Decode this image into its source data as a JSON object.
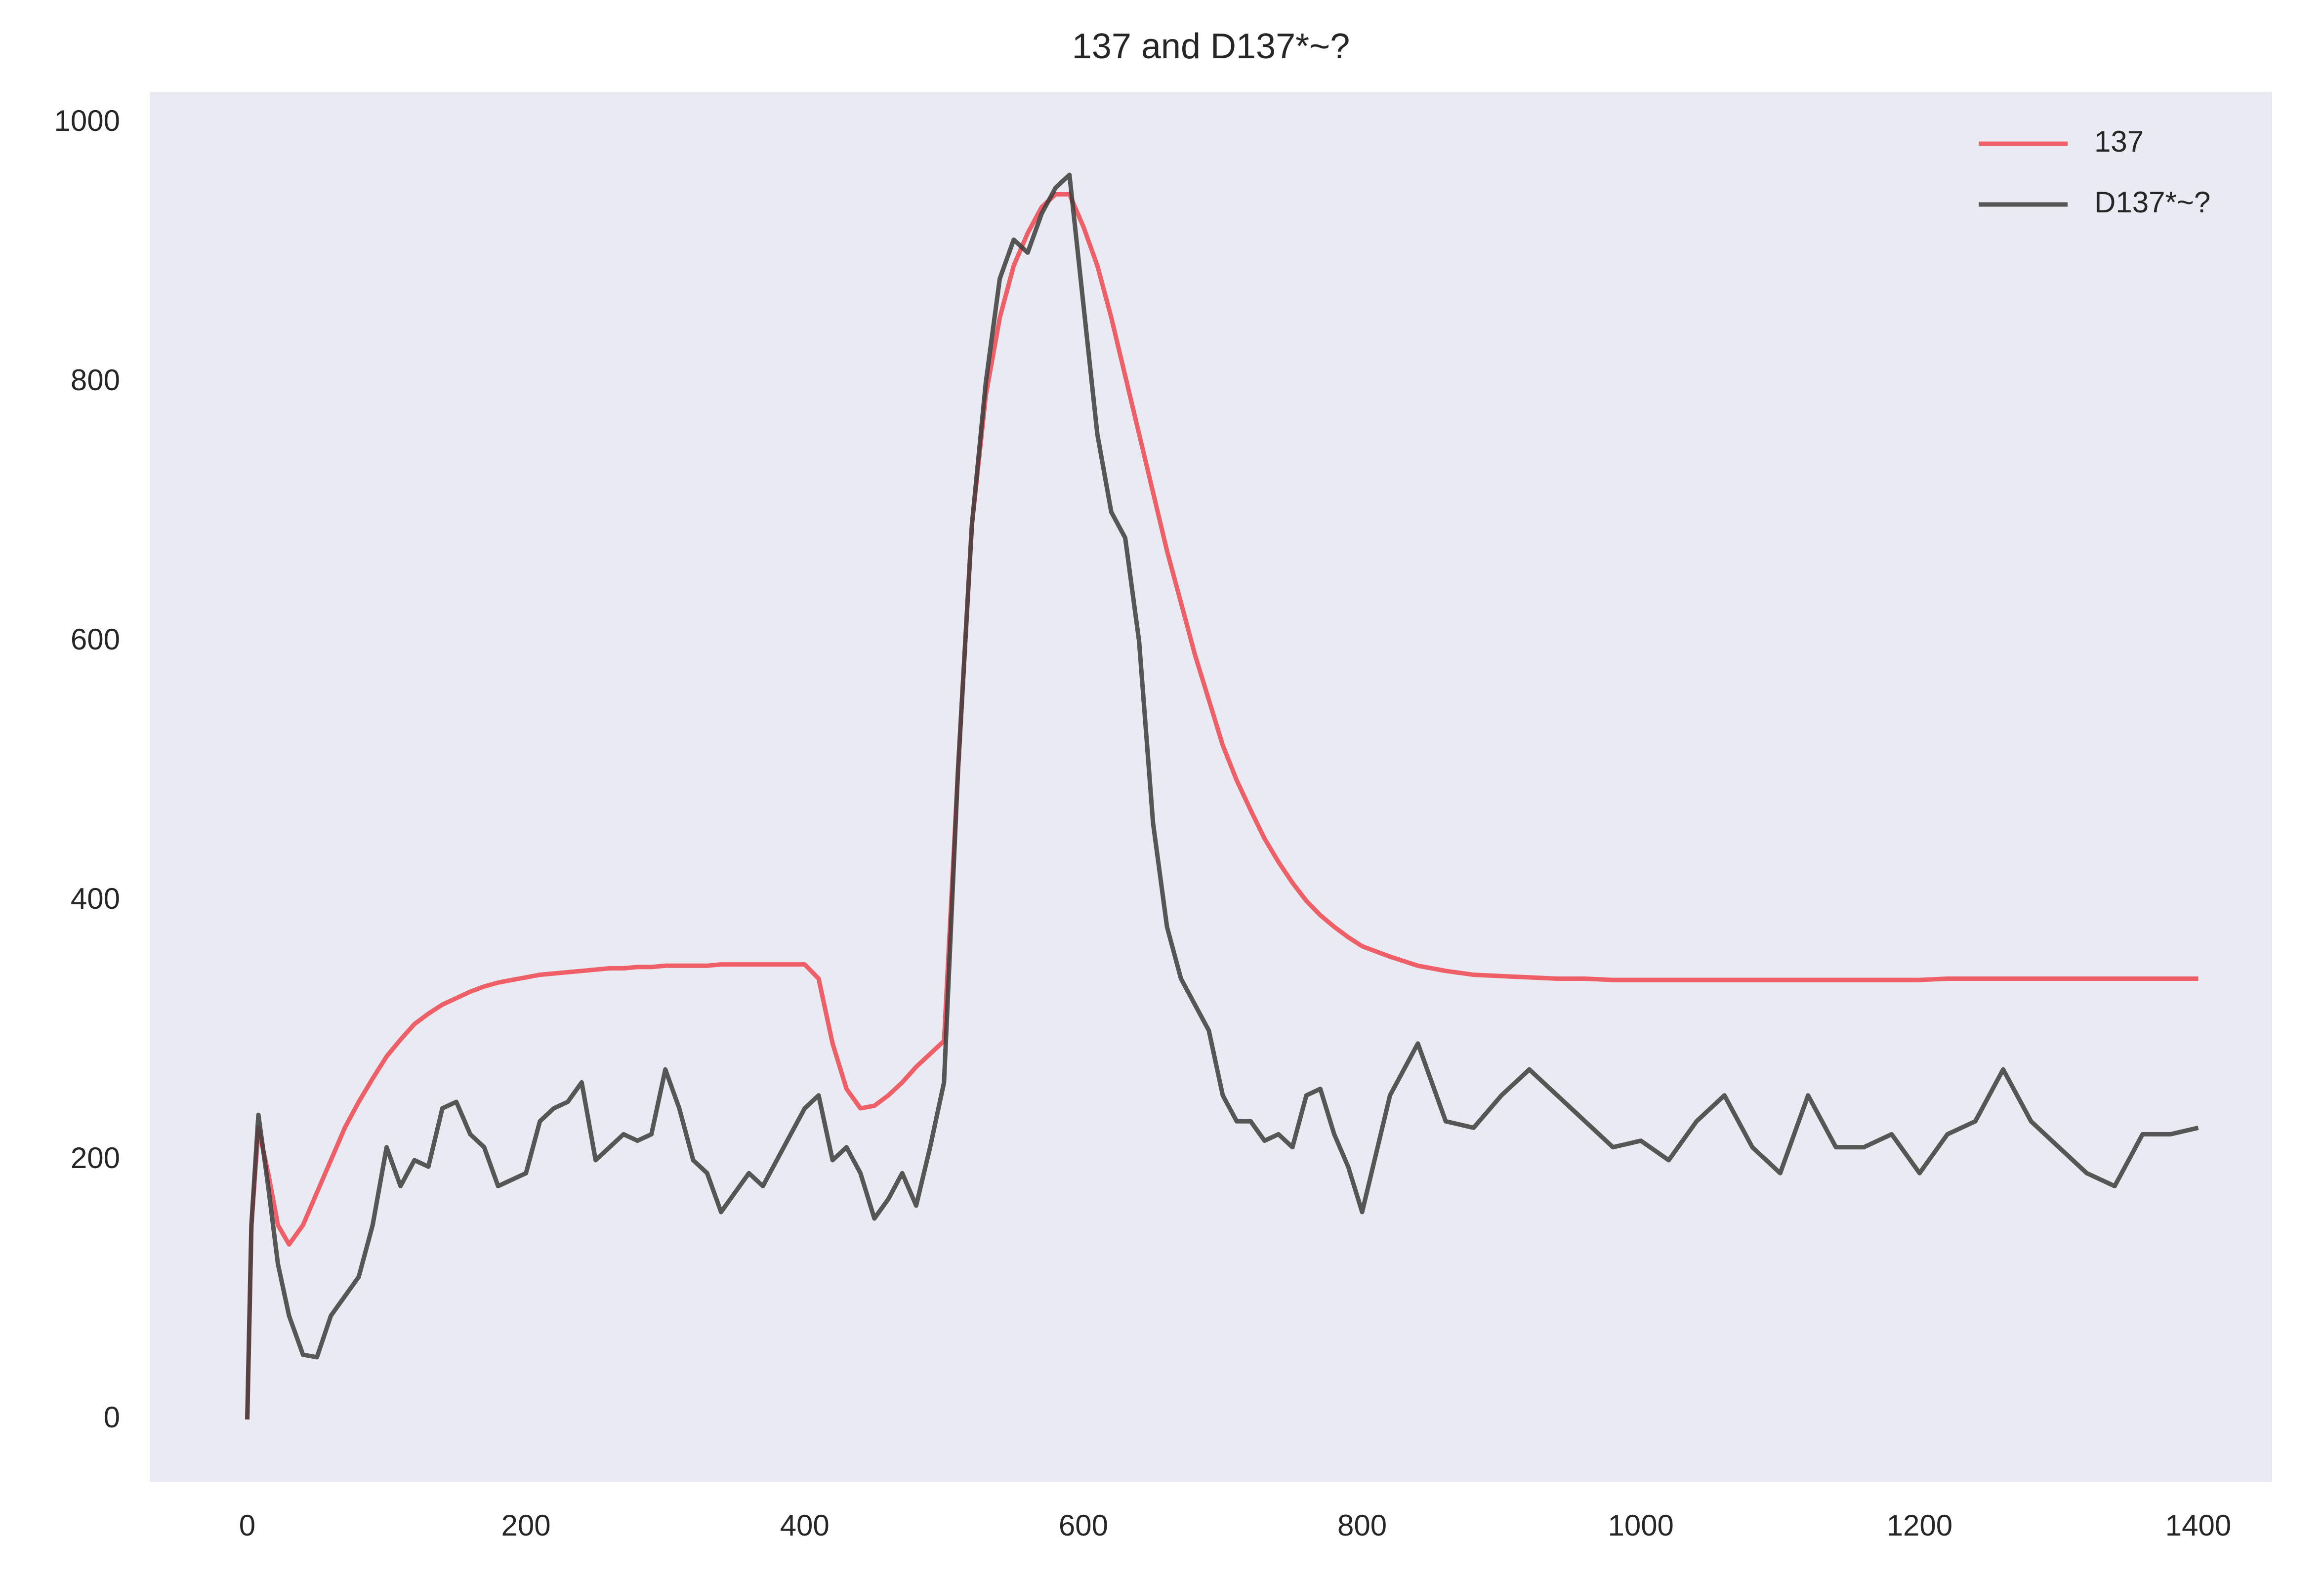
{
  "chart_data": {
    "type": "line",
    "title": "137 and D137*~?",
    "x": [
      0,
      3,
      8,
      15,
      22,
      30,
      40,
      50,
      60,
      70,
      80,
      90,
      100,
      110,
      120,
      130,
      140,
      150,
      160,
      170,
      180,
      190,
      200,
      210,
      220,
      230,
      240,
      250,
      260,
      270,
      280,
      290,
      300,
      310,
      320,
      330,
      340,
      350,
      360,
      370,
      380,
      390,
      400,
      410,
      420,
      430,
      440,
      450,
      460,
      470,
      480,
      490,
      500,
      510,
      520,
      530,
      540,
      550,
      560,
      570,
      580,
      590,
      600,
      610,
      620,
      630,
      640,
      650,
      660,
      670,
      680,
      690,
      700,
      710,
      720,
      730,
      740,
      750,
      760,
      770,
      780,
      790,
      800,
      820,
      840,
      860,
      880,
      900,
      920,
      940,
      960,
      980,
      1000,
      1020,
      1040,
      1060,
      1080,
      1100,
      1120,
      1140,
      1160,
      1180,
      1200,
      1220,
      1240,
      1260,
      1280,
      1300,
      1320,
      1340,
      1360,
      1380,
      1400
    ],
    "series": [
      {
        "name": "137",
        "color": "#ee4650",
        "values": [
          0,
          150,
          225,
          190,
          150,
          135,
          150,
          175,
          200,
          225,
          245,
          263,
          280,
          293,
          305,
          313,
          320,
          325,
          330,
          334,
          337,
          339,
          341,
          343,
          344,
          345,
          346,
          347,
          348,
          348,
          349,
          349,
          350,
          350,
          350,
          350,
          351,
          351,
          351,
          351,
          351,
          351,
          351,
          340,
          290,
          255,
          240,
          242,
          250,
          260,
          272,
          282,
          292,
          500,
          690,
          790,
          850,
          890,
          915,
          935,
          945,
          945,
          920,
          890,
          850,
          805,
          760,
          715,
          670,
          630,
          590,
          555,
          520,
          493,
          470,
          448,
          430,
          414,
          400,
          389,
          380,
          372,
          365,
          357,
          350,
          346,
          343,
          342,
          341,
          340,
          340,
          339,
          339,
          339,
          339,
          339,
          339,
          339,
          339,
          339,
          339,
          339,
          339,
          340,
          340,
          340,
          340,
          340,
          340,
          340,
          340,
          340,
          340
        ]
      },
      {
        "name": "D137*~?",
        "color": "#3c3c3c",
        "values": [
          0,
          150,
          235,
          180,
          120,
          80,
          50,
          48,
          80,
          95,
          110,
          150,
          210,
          180,
          200,
          195,
          240,
          245,
          220,
          210,
          180,
          185,
          190,
          230,
          240,
          245,
          260,
          200,
          210,
          220,
          215,
          220,
          270,
          240,
          200,
          190,
          160,
          175,
          190,
          180,
          200,
          220,
          240,
          250,
          200,
          210,
          190,
          155,
          170,
          190,
          165,
          210,
          260,
          500,
          690,
          800,
          880,
          910,
          900,
          930,
          950,
          960,
          860,
          760,
          700,
          680,
          600,
          460,
          380,
          340,
          320,
          300,
          250,
          230,
          230,
          215,
          220,
          210,
          250,
          255,
          220,
          195,
          160,
          250,
          290,
          230,
          225,
          250,
          270,
          250,
          230,
          210,
          215,
          200,
          230,
          250,
          210,
          190,
          250,
          210,
          210,
          220,
          190,
          220,
          230,
          270,
          230,
          210,
          190,
          180,
          220,
          220,
          225
        ]
      }
    ],
    "xlim": [
      -70,
      1453
    ],
    "ylim": [
      -48,
      1024
    ],
    "xticks": [
      0,
      200,
      400,
      600,
      800,
      1000,
      1200,
      1400
    ],
    "yticks": [
      0,
      200,
      400,
      600,
      800,
      1000
    ],
    "grid": false,
    "legend": "upper right"
  }
}
